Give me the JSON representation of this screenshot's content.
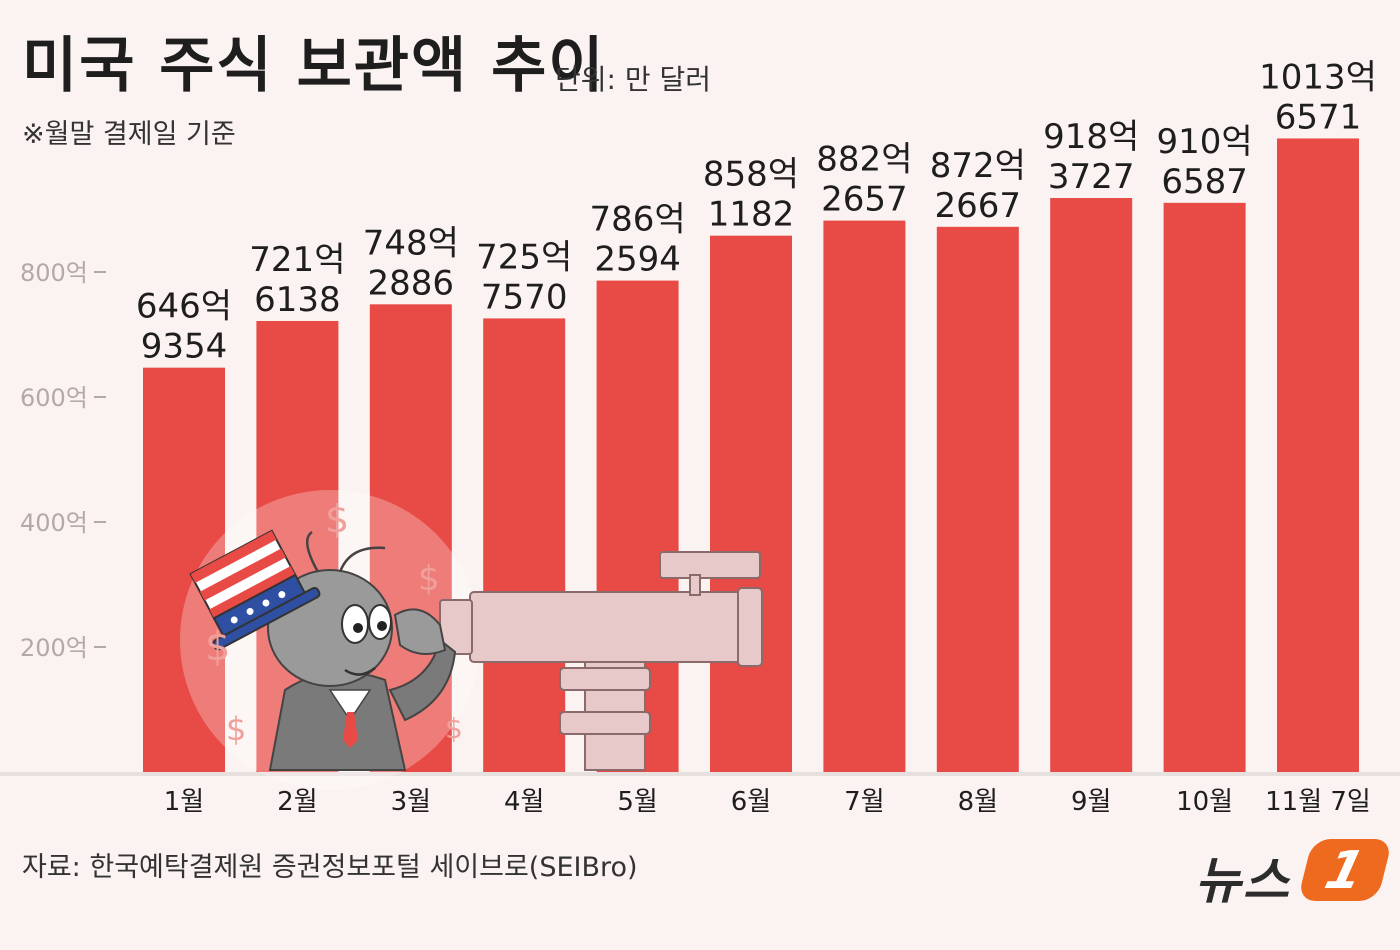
{
  "header": {
    "title": "미국 주식 보관액 추이",
    "unit": "단위: 만 달러",
    "note": "※월말 결제일 기준"
  },
  "footer": {
    "source": "자료: 한국예탁결제원 증권정보포털 세이브로(SEIBro)",
    "logo_text": "뉴스",
    "logo_badge": "1"
  },
  "chart_data": {
    "type": "bar",
    "categories": [
      "1월",
      "2월",
      "3월",
      "4월",
      "5월",
      "6월",
      "7월",
      "8월",
      "9월",
      "10월",
      "11월 7일"
    ],
    "values": [
      6469354,
      7216138,
      7482886,
      7257570,
      7862594,
      8581182,
      8822657,
      8722667,
      9183727,
      9106587,
      10136571
    ],
    "data_labels": [
      [
        "646억",
        "9354"
      ],
      [
        "721억",
        "6138"
      ],
      [
        "748억",
        "2886"
      ],
      [
        "725억",
        "7570"
      ],
      [
        "786억",
        "2594"
      ],
      [
        "858억",
        "1182"
      ],
      [
        "882억",
        "2657"
      ],
      [
        "872억",
        "2667"
      ],
      [
        "918억",
        "3727"
      ],
      [
        "910억",
        "6587"
      ],
      [
        "1013억",
        "6571"
      ]
    ],
    "yticks": [
      {
        "value": 2000000,
        "label": "200억"
      },
      {
        "value": 4000000,
        "label": "400억"
      },
      {
        "value": 6000000,
        "label": "600억"
      },
      {
        "value": 8000000,
        "label": "800억"
      }
    ],
    "ylim": [
      0,
      10500000
    ],
    "bar_color": "#e84a45",
    "grid": false
  },
  "colors": {
    "background": "#fbf3f1",
    "bar": "#e84a45",
    "baseline": "#e6e0de",
    "logo_accent": "#ee6a1f"
  }
}
